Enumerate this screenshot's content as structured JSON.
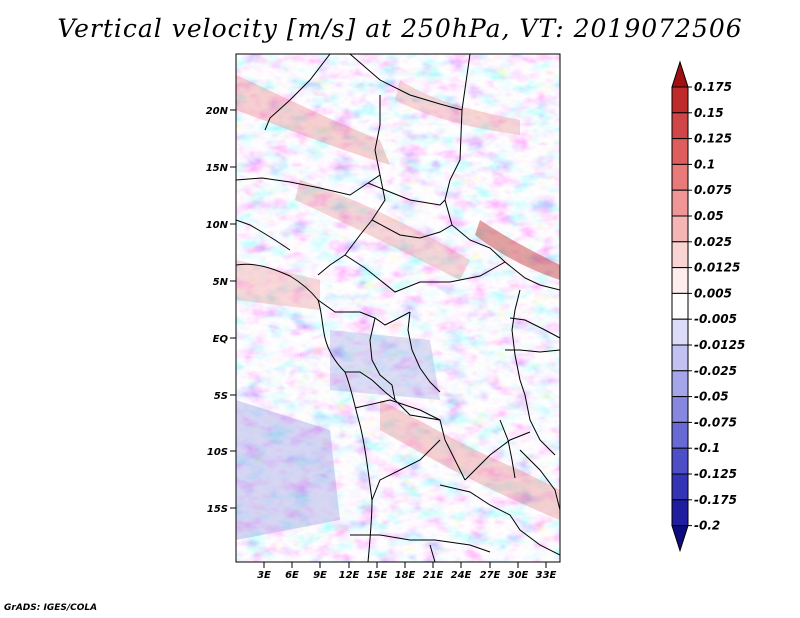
{
  "title": "Vertical velocity [m/s] at 250hPa, VT: 2019072506",
  "credit": "GrADS: IGES/COLA",
  "map": {
    "lat_labels": [
      "20N",
      "15N",
      "10N",
      "5N",
      "EQ",
      "5S",
      "10S",
      "15S"
    ],
    "lon_labels": [
      "3E",
      "6E",
      "9E",
      "12E",
      "15E",
      "18E",
      "21E",
      "24E",
      "27E",
      "30E",
      "33E"
    ]
  },
  "colorbar": {
    "levels": [
      "0.175",
      "0.15",
      "0.125",
      "0.1",
      "0.075",
      "0.05",
      "0.025",
      "0.0125",
      "0.005",
      "-0.005",
      "-0.0125",
      "-0.025",
      "-0.05",
      "-0.075",
      "-0.1",
      "-0.125",
      "-0.175",
      "-0.2"
    ],
    "colors": [
      "#a01010",
      "#bf2a2a",
      "#d04545",
      "#de5e5e",
      "#e87a7a",
      "#f09696",
      "#f6b5b5",
      "#fad3d3",
      "#fdeded",
      "#ffffff",
      "#dcdcf8",
      "#c2c2f2",
      "#a5a5ea",
      "#8787e0",
      "#6a6ad4",
      "#4e4ec6",
      "#3434b4",
      "#1e1e9e",
      "#0c0c80"
    ]
  }
}
